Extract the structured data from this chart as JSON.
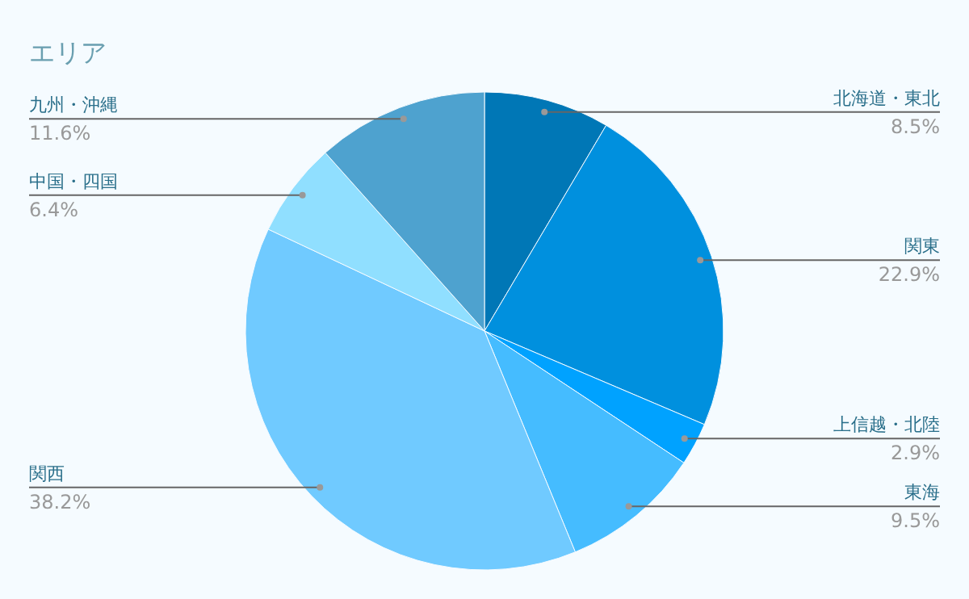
{
  "chart_data": {
    "type": "pie",
    "title": "エリア",
    "categories": [
      "北海道・東北",
      "関東",
      "上信越・北陸",
      "東海",
      "関西",
      "中国・四国",
      "九州・沖縄"
    ],
    "values": [
      8.5,
      22.9,
      2.9,
      9.5,
      38.2,
      6.4,
      11.6
    ],
    "value_labels": [
      "8.5%",
      "22.9%",
      "2.9%",
      "9.5%",
      "38.2%",
      "6.4%",
      "11.6%"
    ],
    "colors": [
      "#0077b6",
      "#0090de",
      "#00a2ff",
      "#45bcff",
      "#70caff",
      "#90dfff",
      "#4ea2cf"
    ]
  }
}
